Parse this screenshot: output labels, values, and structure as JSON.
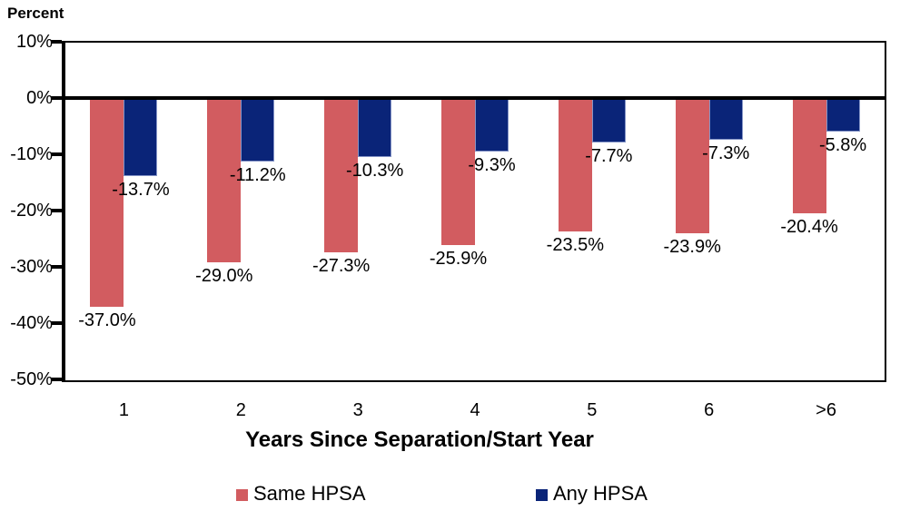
{
  "chart_data": {
    "type": "bar",
    "ylabel": "Percent",
    "xlabel": "Years Since Separation/Start Year",
    "categories": [
      "1",
      "2",
      "3",
      "4",
      "5",
      "6",
      ">6"
    ],
    "series": [
      {
        "name": "Same HPSA",
        "color": "#D25C60",
        "border_color": "",
        "values": [
          -37.0,
          -29.0,
          -27.3,
          -25.9,
          -23.5,
          -23.9,
          -20.4
        ],
        "labels": [
          "-37.0%",
          "-29.0%",
          "-27.3%",
          "-25.9%",
          "-23.5%",
          "-23.9%",
          "-20.4%"
        ]
      },
      {
        "name": "Any HPSA",
        "color": "#0A2478",
        "border_color": "#8494C6",
        "values": [
          -13.7,
          -11.2,
          -10.3,
          -9.3,
          -7.7,
          -7.3,
          -5.8
        ],
        "labels": [
          "-13.7%",
          "-11.2%",
          "-10.3%",
          "-9.3%",
          "-7.7%",
          "-7.3%",
          "-5.8%"
        ]
      }
    ],
    "ylim": [
      -50,
      10
    ],
    "y_ticks": [
      {
        "value": 10,
        "label": "10%"
      },
      {
        "value": 0,
        "label": "0%"
      },
      {
        "value": -10,
        "label": "-10%"
      },
      {
        "value": -20,
        "label": "-20%"
      },
      {
        "value": -30,
        "label": "-30%"
      },
      {
        "value": -40,
        "label": "-40%"
      },
      {
        "value": -50,
        "label": "-50%"
      }
    ],
    "grid": false,
    "legend_position": "bottom",
    "axis_color": "#000000",
    "background_color": "#FFFFFF"
  }
}
